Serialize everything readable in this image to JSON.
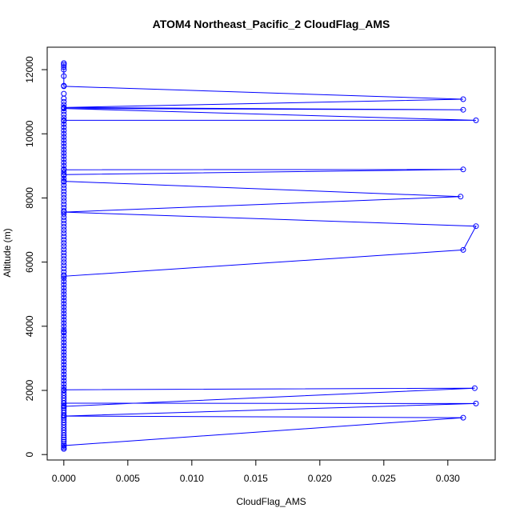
{
  "chart_data": {
    "type": "line",
    "title": "ATOM4 Northeast_Pacific_2 CloudFlag_AMS",
    "xlabel": "CloudFlag_AMS",
    "ylabel": "Altitude (m)",
    "xlim": [
      -0.0013,
      0.0337
    ],
    "ylim": [
      -170,
      12700
    ],
    "xticks": [
      "0.000",
      "0.005",
      "0.010",
      "0.015",
      "0.020",
      "0.025",
      "0.030"
    ],
    "yticks": [
      "0",
      "2000",
      "4000",
      "6000",
      "8000",
      "10000",
      "12000"
    ],
    "grid": false,
    "series": [
      {
        "color": "#0000ff",
        "marker": "circle-open",
        "points": [
          [
            0,
            180
          ],
          [
            0,
            280
          ],
          [
            0.0312,
            1150
          ],
          [
            0,
            1200
          ],
          [
            0.0322,
            1590
          ],
          [
            0,
            1600
          ],
          [
            0,
            1500
          ],
          [
            0.0321,
            2070
          ],
          [
            0,
            2020
          ],
          [
            0,
            3830
          ],
          [
            0,
            5560
          ],
          [
            0.0312,
            6380
          ],
          [
            0.0322,
            7120
          ],
          [
            0,
            7560
          ],
          [
            0.031,
            8040
          ],
          [
            0,
            8520
          ],
          [
            0,
            8730
          ],
          [
            0.0312,
            8890
          ],
          [
            0,
            8880
          ],
          [
            0,
            10420
          ],
          [
            0.0322,
            10420
          ],
          [
            0,
            10790
          ],
          [
            0.0312,
            10750
          ],
          [
            0,
            10820
          ],
          [
            0.0312,
            11080
          ],
          [
            0,
            11480
          ],
          [
            0,
            12200
          ]
        ],
        "dense_zero_altitudes": [
          180,
          230,
          280,
          330,
          400,
          470,
          530,
          600,
          680,
          760,
          840,
          920,
          1000,
          1080,
          1150,
          1230,
          1300,
          1380,
          1450,
          1530,
          1600,
          1680,
          1760,
          1840,
          1920,
          2000,
          2100,
          2200,
          2300,
          2400,
          2500,
          2600,
          2700,
          2800,
          2900,
          3000,
          3100,
          3200,
          3300,
          3400,
          3500,
          3600,
          3700,
          3800,
          3900,
          4000,
          4100,
          4200,
          4300,
          4400,
          4500,
          4600,
          4700,
          4800,
          4900,
          5000,
          5100,
          5200,
          5300,
          5400,
          5500,
          5600,
          5700,
          5800,
          5900,
          6000,
          6100,
          6200,
          6300,
          6400,
          6500,
          6600,
          6700,
          6800,
          6900,
          7000,
          7100,
          7200,
          7300,
          7400,
          7500,
          7600,
          7700,
          7800,
          7900,
          8000,
          8100,
          8200,
          8300,
          8400,
          8500,
          8600,
          8700,
          8800,
          8900,
          9000,
          9100,
          9200,
          9300,
          9400,
          9500,
          9600,
          9700,
          9800,
          9900,
          10000,
          10100,
          10200,
          10300,
          10400,
          10500,
          10600,
          10700,
          10800,
          10900,
          11000,
          11100,
          11250,
          11500,
          11800,
          12000,
          12080,
          12150,
          12200
        ]
      }
    ]
  }
}
